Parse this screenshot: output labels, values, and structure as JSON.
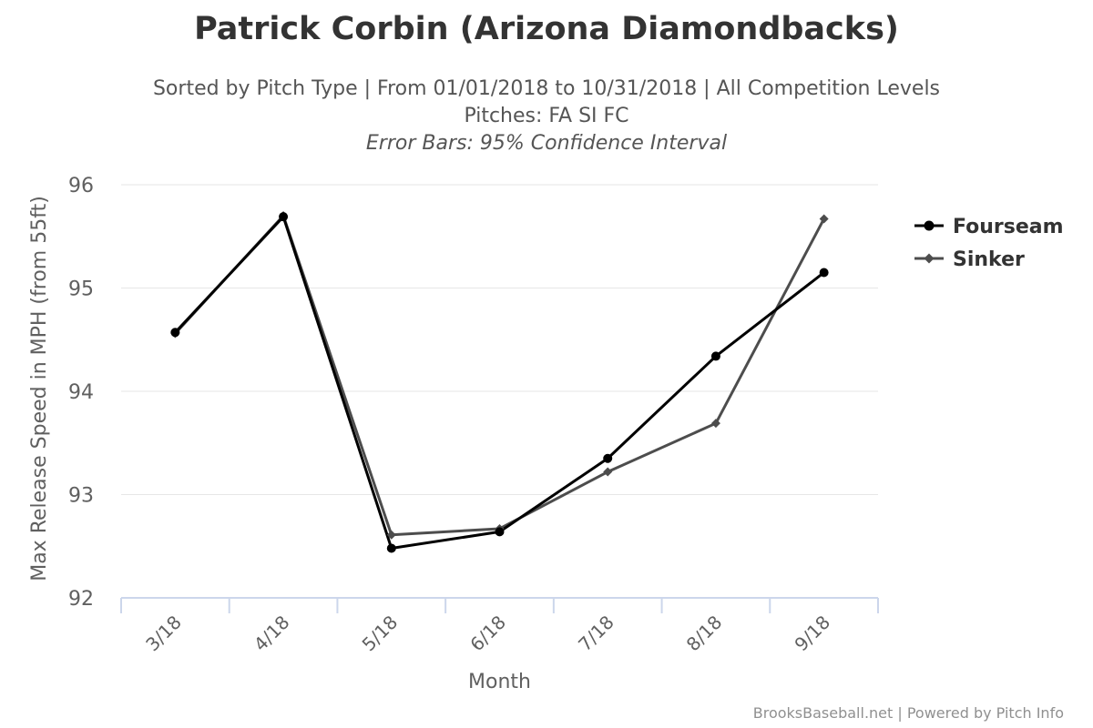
{
  "chart_data": {
    "type": "line",
    "title": "Patrick Corbin (Arizona Diamondbacks)",
    "subtitle_lines": [
      "Sorted by Pitch Type | From 01/01/2018 to 10/31/2018 | All Competition Levels",
      "Pitches: FA SI FC"
    ],
    "subtitle_italic": "Error Bars: 95% Confidence Interval",
    "xlabel": "Month",
    "ylabel": "Max Release Speed in MPH (from 55ft)",
    "categories": [
      "3/18",
      "4/18",
      "5/18",
      "6/18",
      "7/18",
      "8/18",
      "9/18"
    ],
    "ylim": [
      92,
      96
    ],
    "yticks": [
      "92",
      "93",
      "94",
      "95",
      "96"
    ],
    "grid": true,
    "legend_position": "right",
    "series": [
      {
        "name": "Fourseam",
        "marker": "circle",
        "color": "#000000",
        "values": [
          94.57,
          95.69,
          92.48,
          92.64,
          93.35,
          94.34,
          95.15
        ]
      },
      {
        "name": "Sinker",
        "marker": "diamond",
        "color": "#4d4d4d",
        "values": [
          94.56,
          95.7,
          92.61,
          92.67,
          93.22,
          93.69,
          95.67
        ]
      }
    ]
  },
  "credits": "BrooksBaseball.net | Powered by Pitch Info"
}
